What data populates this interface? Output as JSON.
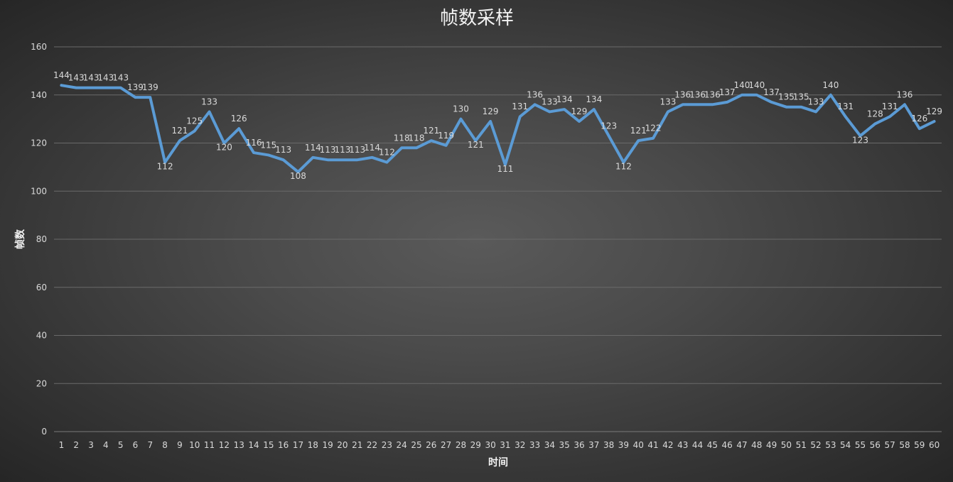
{
  "chart_data": {
    "type": "line",
    "title": "帧数采样",
    "xlabel": "时间",
    "ylabel": "帧数",
    "ylim": [
      0,
      160
    ],
    "yticks": [
      0,
      20,
      40,
      60,
      80,
      100,
      120,
      140,
      160
    ],
    "grid": true,
    "legend": "none",
    "line_color": "#5b9bd5",
    "x": [
      1,
      2,
      3,
      4,
      5,
      6,
      7,
      8,
      9,
      10,
      11,
      12,
      13,
      14,
      15,
      16,
      17,
      18,
      19,
      20,
      21,
      22,
      23,
      24,
      25,
      26,
      27,
      28,
      29,
      30,
      31,
      32,
      33,
      34,
      35,
      36,
      37,
      38,
      39,
      40,
      41,
      42,
      43,
      44,
      45,
      46,
      47,
      48,
      49,
      50,
      51,
      52,
      53,
      54,
      55,
      56,
      57,
      58,
      59,
      60
    ],
    "series": [
      {
        "values": [
          144,
          143,
          143,
          143,
          143,
          139,
          139,
          112,
          121,
          125,
          133,
          120,
          126,
          116,
          115,
          113,
          108,
          114,
          113,
          113,
          113,
          114,
          112,
          118,
          118,
          121,
          119,
          130,
          121,
          129,
          111,
          131,
          136,
          133,
          134,
          129,
          134,
          123,
          112,
          121,
          122,
          133,
          136,
          136,
          136,
          137,
          140,
          140,
          137,
          135,
          135,
          133,
          140,
          131,
          123,
          128,
          131,
          136,
          126,
          129
        ]
      }
    ]
  }
}
